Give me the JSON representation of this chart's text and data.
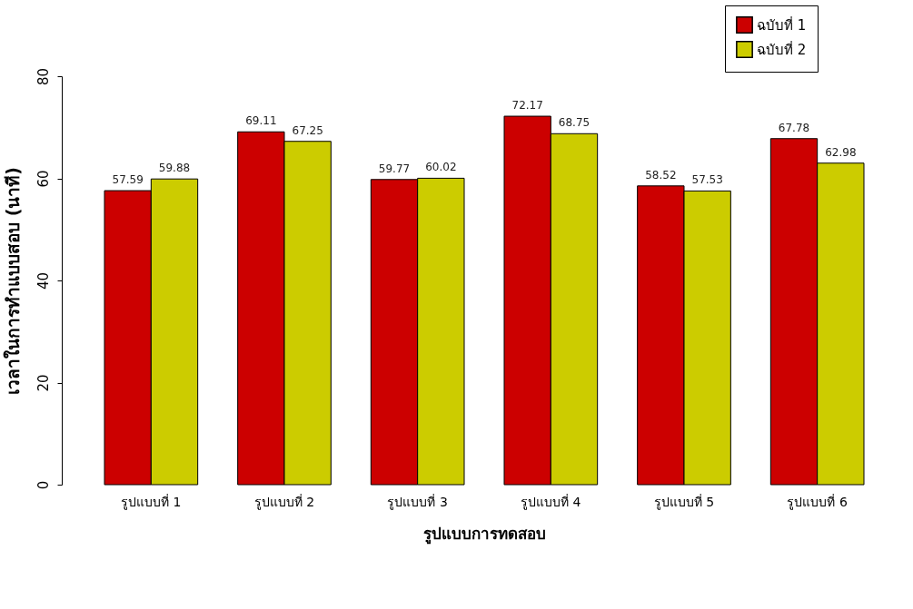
{
  "chart_data": {
    "type": "bar",
    "xlabel": "รูปแบบการทดสอบ",
    "ylabel": "เวลาในการทำแบบสอบ (นาที)",
    "categories": [
      "รูปแบบที่ 1",
      "รูปแบบที่ 2",
      "รูปแบบที่ 3",
      "รูปแบบที่ 4",
      "รูปแบบที่ 5",
      "รูปแบบที่ 6"
    ],
    "series": [
      {
        "name": "ฉบับที่ 1",
        "color": "#cc0000",
        "values": [
          57.59,
          69.11,
          59.77,
          72.17,
          58.52,
          67.78
        ]
      },
      {
        "name": "ฉบับที่ 2",
        "color": "#cccc00",
        "values": [
          59.88,
          67.25,
          60.02,
          68.75,
          57.53,
          62.98
        ]
      }
    ],
    "ylim": [
      0,
      80
    ],
    "yticks": [
      0,
      20,
      40,
      60,
      80
    ],
    "grid": false,
    "legend": "top right",
    "data_labels": true
  }
}
